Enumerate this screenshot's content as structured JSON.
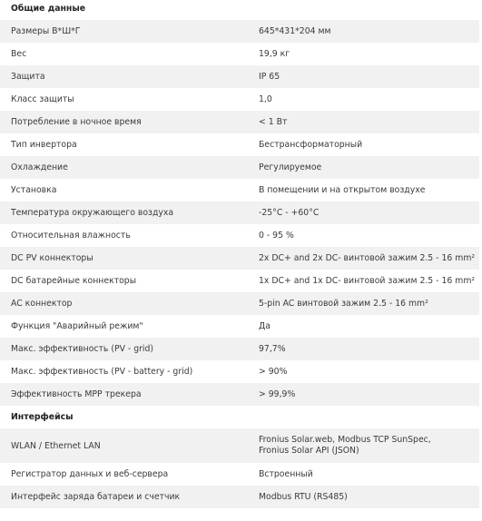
{
  "sections": [
    {
      "title": "Общие данные",
      "rows": [
        [
          "Размеры В*Ш*Г",
          "645*431*204 мм"
        ],
        [
          "Вес",
          "19,9 кг"
        ],
        [
          "Защита",
          "IP 65"
        ],
        [
          "Класс защиты",
          "1,0"
        ],
        [
          "Потребление в ночное время",
          "< 1 Вт"
        ],
        [
          "Тип инвертора",
          "Бестрансформаторный"
        ],
        [
          "Охлаждение",
          "Регулируемое"
        ],
        [
          "Установка",
          "В помещении и на открытом воздухе"
        ],
        [
          "Температура окружающего воздуха",
          "-25°C - +60°C"
        ],
        [
          "Относительная влажность",
          "0 - 95 %"
        ],
        [
          "DC PV коннекторы",
          "2x DC+ and 2x DC- винтовой зажим 2.5 - 16 mm²"
        ],
        [
          "DC батарейные коннекторы",
          "1x DC+ and 1x DC- винтовой зажим 2.5 - 16 mm²"
        ],
        [
          "AC коннектор",
          "5-pin AC винтовой зажим 2.5 - 16 mm²"
        ],
        [
          "Функция \"Аварийный режим\"",
          "Да"
        ],
        [
          "Макс. эффективность (PV - grid)",
          "97,7%"
        ],
        [
          "Макс. эффективность (PV - battery - grid)",
          "> 90%"
        ],
        [
          "Эффективность MPP трекера",
          "> 99,9%"
        ]
      ]
    },
    {
      "title": "Интерфейсы",
      "rows": [
        [
          "WLAN / Ethernet LAN",
          "Fronius Solar.web, Modbus TCP SunSpec,\nFronius Solar API (JSON)"
        ],
        [
          "Регистратор данных и веб-сервера",
          "Встроенный"
        ],
        [
          "Интерфейс заряда батареи и счетчик",
          "Modbus RTU (RS485)"
        ]
      ]
    }
  ]
}
